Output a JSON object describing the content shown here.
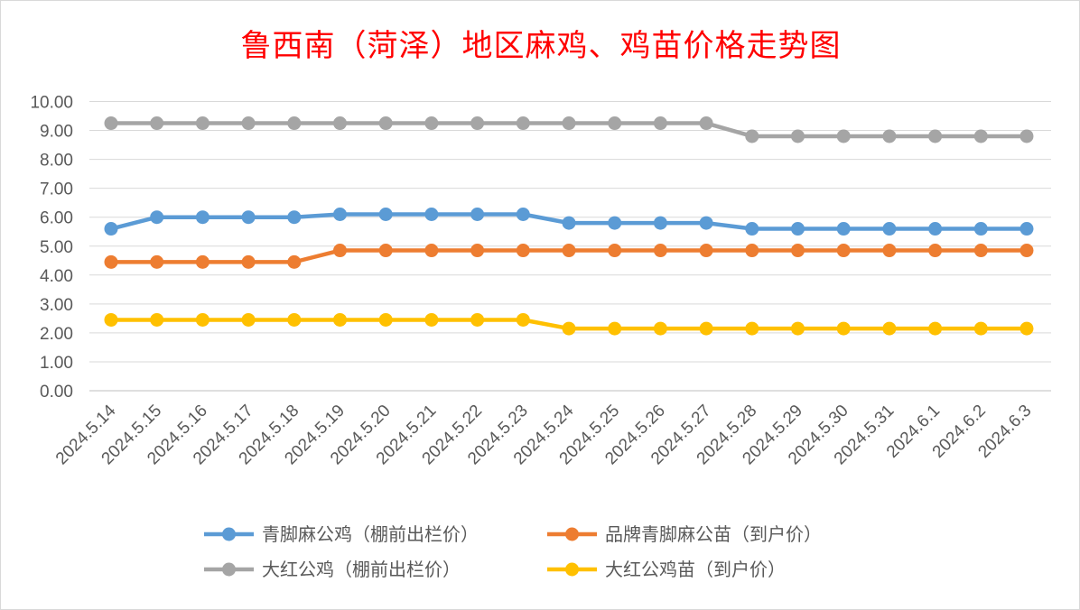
{
  "chart_data": {
    "type": "line",
    "title": "鲁西南（菏泽）地区麻鸡、鸡苗价格走势图",
    "xlabel": "",
    "ylabel": "",
    "ylim": [
      0,
      10
    ],
    "y_ticks": [
      "0.00",
      "1.00",
      "2.00",
      "3.00",
      "4.00",
      "5.00",
      "6.00",
      "7.00",
      "8.00",
      "9.00",
      "10.00"
    ],
    "grid": true,
    "legend_position": "bottom",
    "categories": [
      "2024.5.14",
      "2024.5.15",
      "2024.5.16",
      "2024.5.17",
      "2024.5.18",
      "2024.5.19",
      "2024.5.20",
      "2024.5.21",
      "2024.5.22",
      "2024.5.23",
      "2024.5.24",
      "2024.5.25",
      "2024.5.26",
      "2024.5.27",
      "2024.5.28",
      "2024.5.29",
      "2024.5.30",
      "2024.5.31",
      "2024.6.1",
      "2024.6.2",
      "2024.6.3"
    ],
    "series": [
      {
        "name": "青脚麻公鸡（棚前出栏价）",
        "color": "#5b9bd5",
        "values": [
          5.6,
          6.0,
          6.0,
          6.0,
          6.0,
          6.1,
          6.1,
          6.1,
          6.1,
          6.1,
          5.8,
          5.8,
          5.8,
          5.8,
          5.6,
          5.6,
          5.6,
          5.6,
          5.6,
          5.6,
          5.6
        ]
      },
      {
        "name": "品牌青脚麻公苗（到户价）",
        "color": "#ed7d31",
        "values": [
          4.45,
          4.45,
          4.45,
          4.45,
          4.45,
          4.85,
          4.85,
          4.85,
          4.85,
          4.85,
          4.85,
          4.85,
          4.85,
          4.85,
          4.85,
          4.85,
          4.85,
          4.85,
          4.85,
          4.85,
          4.85
        ]
      },
      {
        "name": "大红公鸡（棚前出栏价）",
        "color": "#a5a5a5",
        "values": [
          9.25,
          9.25,
          9.25,
          9.25,
          9.25,
          9.25,
          9.25,
          9.25,
          9.25,
          9.25,
          9.25,
          9.25,
          9.25,
          9.25,
          8.8,
          8.8,
          8.8,
          8.8,
          8.8,
          8.8,
          8.8
        ]
      },
      {
        "name": "大红公鸡苗（到户价）",
        "color": "#ffc000",
        "values": [
          2.45,
          2.45,
          2.45,
          2.45,
          2.45,
          2.45,
          2.45,
          2.45,
          2.45,
          2.45,
          2.15,
          2.15,
          2.15,
          2.15,
          2.15,
          2.15,
          2.15,
          2.15,
          2.15,
          2.15,
          2.15
        ]
      }
    ]
  }
}
